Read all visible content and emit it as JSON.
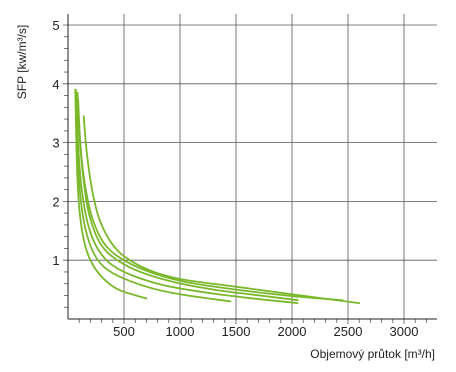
{
  "chart_data": {
    "type": "line",
    "title": "",
    "xlabel": "Objemový průtok [m³/h]",
    "ylabel": "SFP [kw/m³/s]",
    "xlim": [
      0,
      3250
    ],
    "ylim": [
      0,
      5.2
    ],
    "x_ticks": [
      500,
      1000,
      1500,
      2000,
      2500,
      3000
    ],
    "x_tick_labels": [
      "500",
      "1000",
      "1500",
      "2000",
      "2500",
      "3000"
    ],
    "y_ticks": [
      1,
      2,
      3,
      4,
      5
    ],
    "y_tick_labels": [
      "1",
      "2",
      "3",
      "4",
      "5"
    ],
    "grid": true,
    "series_color": "#7ab82b",
    "series": [
      {
        "x": [
          65,
          80,
          100,
          140,
          200,
          300,
          450,
          700
        ],
        "values": [
          3.9,
          2.6,
          1.9,
          1.35,
          1.0,
          0.72,
          0.5,
          0.35
        ]
      },
      {
        "x": [
          70,
          85,
          110,
          160,
          250,
          400,
          700,
          1000,
          1450
        ],
        "values": [
          3.9,
          2.9,
          2.1,
          1.5,
          1.05,
          0.78,
          0.55,
          0.42,
          0.3
        ]
      },
      {
        "x": [
          75,
          90,
          120,
          180,
          280,
          450,
          800,
          1200,
          1600,
          2050
        ],
        "values": [
          3.85,
          3.0,
          2.25,
          1.6,
          1.15,
          0.85,
          0.6,
          0.46,
          0.36,
          0.27
        ]
      },
      {
        "x": [
          85,
          100,
          140,
          200,
          320,
          550,
          900,
          1300,
          1800,
          2050
        ],
        "values": [
          3.85,
          3.2,
          2.35,
          1.7,
          1.2,
          0.88,
          0.65,
          0.5,
          0.38,
          0.32
        ]
      },
      {
        "x": [
          90,
          110,
          150,
          220,
          350,
          600,
          1000,
          1500,
          2000,
          2450
        ],
        "values": [
          3.75,
          3.0,
          2.3,
          1.7,
          1.22,
          0.9,
          0.65,
          0.5,
          0.39,
          0.32
        ]
      },
      {
        "x": [
          140,
          170,
          220,
          300,
          450,
          700,
          1000,
          1500,
          2000,
          2600
        ],
        "values": [
          3.45,
          2.8,
          2.15,
          1.6,
          1.15,
          0.85,
          0.68,
          0.55,
          0.42,
          0.27
        ]
      }
    ]
  }
}
